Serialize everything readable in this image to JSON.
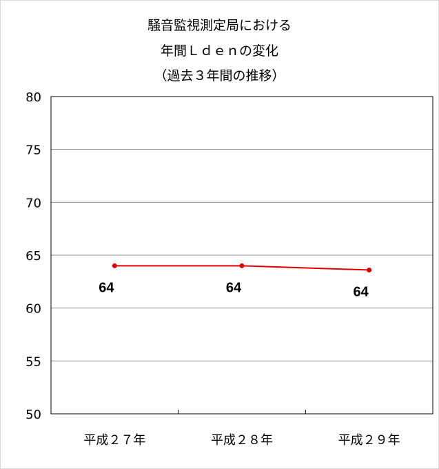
{
  "chart_data": {
    "type": "line",
    "title_lines": [
      "騒音監視測定局における",
      "年間Ｌｄｅｎの変化",
      "（過去３年間の推移）"
    ],
    "categories": [
      "平成２７年",
      "平成２８年",
      "平成２９年"
    ],
    "series": [
      {
        "values": [
          64.0,
          64.0,
          63.6
        ],
        "labels": [
          "64",
          "64",
          "64"
        ],
        "color": "#e00000"
      }
    ],
    "yticks": [
      "80",
      "75",
      "70",
      "65",
      "60",
      "55",
      "50"
    ],
    "ylim": [
      50,
      80
    ],
    "ystep": 5,
    "grid": true,
    "legend": "none",
    "xlabel": "",
    "ylabel": ""
  }
}
